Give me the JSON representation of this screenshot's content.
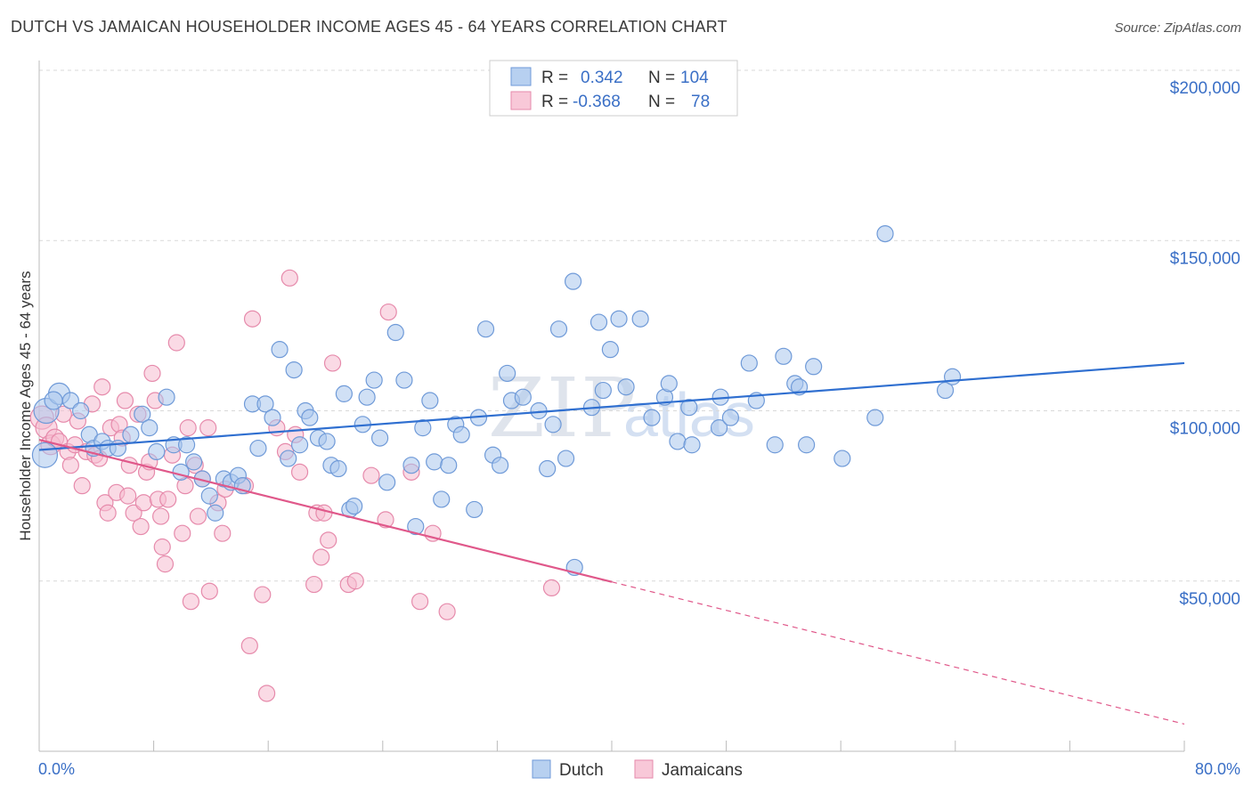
{
  "title": "DUTCH VS JAMAICAN HOUSEHOLDER INCOME AGES 45 - 64 YEARS CORRELATION CHART",
  "source": "Source: ZipAtlas.com",
  "watermark": {
    "zip": "ZIP",
    "atlas": "atlas"
  },
  "colors": {
    "dutch_fill": "#a9c6ec",
    "dutch_stroke": "#6f9ad8",
    "dutch_line": "#2f6fd0",
    "jam_fill": "#f5bcd0",
    "jam_stroke": "#e68aab",
    "jam_line": "#e0588a",
    "grid": "#d9d9d9",
    "tick_text": "#3a6fc6"
  },
  "legend": {
    "rows": [
      {
        "r_label": "R =",
        "r_value": "0.342",
        "n_label": "N =",
        "n_value": "104"
      },
      {
        "r_label": "R =",
        "r_value": "-0.368",
        "n_label": "N =",
        "n_value": "78"
      }
    ]
  },
  "chart_data": {
    "type": "scatter",
    "title": "DUTCH VS JAMAICAN HOUSEHOLDER INCOME AGES 45 - 64 YEARS CORRELATION CHART",
    "xlabel": "",
    "ylabel": "Householder Income Ages 45 - 64 years",
    "xlim": [
      0,
      80
    ],
    "ylim": [
      0,
      210000
    ],
    "x_tick_labels": [
      "0.0%",
      "80.0%"
    ],
    "y_ticks": [
      50000,
      100000,
      150000,
      200000
    ],
    "y_tick_labels": [
      "$50,000",
      "$100,000",
      "$150,000",
      "$200,000"
    ],
    "grid": true,
    "legend_position": "bottom-center",
    "series": [
      {
        "name": "Dutch",
        "r": 0.342,
        "n": 104,
        "trend": {
          "x": [
            0,
            80
          ],
          "y": [
            88500,
            114000
          ],
          "dashed_from": null
        },
        "points": [
          [
            0.4,
            87000,
            14
          ],
          [
            0.5,
            100000,
            14
          ],
          [
            1.4,
            105000,
            12
          ],
          [
            1.0,
            103000,
            10
          ],
          [
            2.2,
            103000,
            9
          ],
          [
            2.9,
            100000,
            9
          ],
          [
            3.5,
            93000,
            9
          ],
          [
            3.8,
            89000,
            9
          ],
          [
            4.4,
            91000,
            9
          ],
          [
            4.8,
            89000,
            9
          ],
          [
            5.5,
            89000,
            9
          ],
          [
            6.4,
            93000,
            9
          ],
          [
            7.2,
            99000,
            9
          ],
          [
            7.7,
            95000,
            9
          ],
          [
            8.2,
            88000,
            9
          ],
          [
            8.9,
            104000,
            9
          ],
          [
            9.4,
            90000,
            9
          ],
          [
            9.9,
            82000,
            9
          ],
          [
            10.3,
            90000,
            9
          ],
          [
            10.8,
            85000,
            9
          ],
          [
            11.4,
            80000,
            9
          ],
          [
            11.9,
            75000,
            9
          ],
          [
            12.3,
            70000,
            9
          ],
          [
            12.9,
            80000,
            9
          ],
          [
            13.4,
            79000,
            9
          ],
          [
            13.9,
            81000,
            9
          ],
          [
            14.2,
            78000,
            9
          ],
          [
            14.9,
            102000,
            9
          ],
          [
            15.3,
            89000,
            9
          ],
          [
            15.8,
            102000,
            9
          ],
          [
            16.3,
            98000,
            9
          ],
          [
            16.8,
            118000,
            9
          ],
          [
            17.4,
            86000,
            9
          ],
          [
            17.8,
            112000,
            9
          ],
          [
            18.2,
            90000,
            9
          ],
          [
            18.6,
            100000,
            9
          ],
          [
            18.9,
            98000,
            9
          ],
          [
            19.5,
            92000,
            9
          ],
          [
            20.1,
            91000,
            9
          ],
          [
            20.4,
            84000,
            9
          ],
          [
            20.9,
            83000,
            9
          ],
          [
            21.3,
            105000,
            9
          ],
          [
            21.7,
            71000,
            9
          ],
          [
            22.0,
            72000,
            9
          ],
          [
            22.6,
            96000,
            9
          ],
          [
            22.9,
            104000,
            9
          ],
          [
            23.4,
            109000,
            9
          ],
          [
            23.8,
            92000,
            9
          ],
          [
            24.3,
            79000,
            9
          ],
          [
            24.9,
            123000,
            9
          ],
          [
            25.5,
            109000,
            9
          ],
          [
            26.0,
            84000,
            9
          ],
          [
            26.3,
            66000,
            9
          ],
          [
            26.8,
            95000,
            9
          ],
          [
            27.3,
            103000,
            9
          ],
          [
            27.6,
            85000,
            9
          ],
          [
            28.1,
            74000,
            9
          ],
          [
            28.6,
            84000,
            9
          ],
          [
            29.1,
            96000,
            9
          ],
          [
            29.5,
            93000,
            9
          ],
          [
            30.4,
            71000,
            9
          ],
          [
            30.7,
            98000,
            9
          ],
          [
            31.2,
            124000,
            9
          ],
          [
            31.7,
            87000,
            9
          ],
          [
            32.2,
            84000,
            9
          ],
          [
            32.7,
            111000,
            9
          ],
          [
            33.0,
            103000,
            9
          ],
          [
            33.8,
            104000,
            9
          ],
          [
            34.9,
            100000,
            9
          ],
          [
            35.5,
            83000,
            9
          ],
          [
            35.9,
            96000,
            9
          ],
          [
            36.3,
            124000,
            9
          ],
          [
            36.8,
            86000,
            9
          ],
          [
            37.4,
            54000,
            9
          ],
          [
            37.3,
            138000,
            9
          ],
          [
            38.6,
            101000,
            9
          ],
          [
            39.1,
            126000,
            9
          ],
          [
            39.4,
            106000,
            9
          ],
          [
            39.9,
            118000,
            9
          ],
          [
            40.5,
            127000,
            9
          ],
          [
            41.0,
            107000,
            9
          ],
          [
            42.0,
            127000,
            9
          ],
          [
            42.8,
            98000,
            9
          ],
          [
            43.7,
            104000,
            9
          ],
          [
            44.0,
            108000,
            9
          ],
          [
            44.6,
            91000,
            9
          ],
          [
            45.4,
            101000,
            9
          ],
          [
            45.6,
            90000,
            9
          ],
          [
            47.5,
            95000,
            9
          ],
          [
            47.6,
            104000,
            9
          ],
          [
            48.3,
            98000,
            9
          ],
          [
            49.6,
            114000,
            9
          ],
          [
            50.1,
            103000,
            9
          ],
          [
            51.4,
            90000,
            9
          ],
          [
            52.0,
            116000,
            9
          ],
          [
            52.8,
            108000,
            9
          ],
          [
            53.1,
            107000,
            9
          ],
          [
            53.6,
            90000,
            9
          ],
          [
            54.1,
            113000,
            9
          ],
          [
            56.1,
            86000,
            9
          ],
          [
            58.4,
            98000,
            9
          ],
          [
            59.1,
            152000,
            9
          ],
          [
            63.3,
            106000,
            9
          ],
          [
            63.8,
            110000,
            9
          ]
        ]
      },
      {
        "name": "Jamaicans",
        "r": -0.368,
        "n": 78,
        "trend": {
          "x": [
            0,
            80
          ],
          "y": [
            91500,
            8000
          ],
          "dashed_from": 40
        },
        "points": [
          [
            0.2,
            98000,
            13
          ],
          [
            0.5,
            95000,
            12
          ],
          [
            0.8,
            90000,
            11
          ],
          [
            1.1,
            92000,
            10
          ],
          [
            1.4,
            91000,
            9
          ],
          [
            1.7,
            99000,
            9
          ],
          [
            2.0,
            88000,
            9
          ],
          [
            2.2,
            84000,
            9
          ],
          [
            2.5,
            90000,
            9
          ],
          [
            2.7,
            97000,
            9
          ],
          [
            3.0,
            78000,
            9
          ],
          [
            3.3,
            88000,
            9
          ],
          [
            3.7,
            102000,
            9
          ],
          [
            3.9,
            87000,
            9
          ],
          [
            4.2,
            86000,
            9
          ],
          [
            4.4,
            107000,
            9
          ],
          [
            4.6,
            73000,
            9
          ],
          [
            4.8,
            70000,
            9
          ],
          [
            5.0,
            95000,
            9
          ],
          [
            5.4,
            76000,
            9
          ],
          [
            5.6,
            96000,
            9
          ],
          [
            5.8,
            92000,
            9
          ],
          [
            6.0,
            103000,
            9
          ],
          [
            6.2,
            75000,
            9
          ],
          [
            6.3,
            84000,
            9
          ],
          [
            6.6,
            70000,
            9
          ],
          [
            6.9,
            99000,
            9
          ],
          [
            7.1,
            66000,
            9
          ],
          [
            7.3,
            73000,
            9
          ],
          [
            7.5,
            82000,
            9
          ],
          [
            7.7,
            85000,
            9
          ],
          [
            7.9,
            111000,
            9
          ],
          [
            8.1,
            103000,
            9
          ],
          [
            8.3,
            74000,
            9
          ],
          [
            8.5,
            69000,
            9
          ],
          [
            8.6,
            60000,
            9
          ],
          [
            8.8,
            55000,
            9
          ],
          [
            9.0,
            74000,
            9
          ],
          [
            9.3,
            87000,
            9
          ],
          [
            9.6,
            120000,
            9
          ],
          [
            10.0,
            64000,
            9
          ],
          [
            10.2,
            78000,
            9
          ],
          [
            10.4,
            95000,
            9
          ],
          [
            10.6,
            44000,
            9
          ],
          [
            10.9,
            84000,
            9
          ],
          [
            11.1,
            69000,
            9
          ],
          [
            11.4,
            80000,
            9
          ],
          [
            11.9,
            47000,
            9
          ],
          [
            11.8,
            95000,
            9
          ],
          [
            12.5,
            73000,
            9
          ],
          [
            12.8,
            64000,
            9
          ],
          [
            13.0,
            77000,
            9
          ],
          [
            14.4,
            78000,
            9
          ],
          [
            14.7,
            31000,
            9
          ],
          [
            14.9,
            127000,
            9
          ],
          [
            15.6,
            46000,
            9
          ],
          [
            15.9,
            17000,
            9
          ],
          [
            16.6,
            95000,
            9
          ],
          [
            17.2,
            88000,
            9
          ],
          [
            17.5,
            139000,
            9
          ],
          [
            17.9,
            93000,
            9
          ],
          [
            18.2,
            82000,
            9
          ],
          [
            19.2,
            49000,
            9
          ],
          [
            19.4,
            70000,
            9
          ],
          [
            19.7,
            57000,
            9
          ],
          [
            19.9,
            70000,
            9
          ],
          [
            20.2,
            62000,
            9
          ],
          [
            20.5,
            114000,
            9
          ],
          [
            21.6,
            49000,
            9
          ],
          [
            22.1,
            50000,
            9
          ],
          [
            23.2,
            81000,
            9
          ],
          [
            24.2,
            68000,
            9
          ],
          [
            24.4,
            129000,
            9
          ],
          [
            26.6,
            44000,
            9
          ],
          [
            27.5,
            64000,
            9
          ],
          [
            28.5,
            41000,
            9
          ],
          [
            35.8,
            48000,
            9
          ],
          [
            26.0,
            82000,
            9
          ]
        ]
      }
    ]
  }
}
